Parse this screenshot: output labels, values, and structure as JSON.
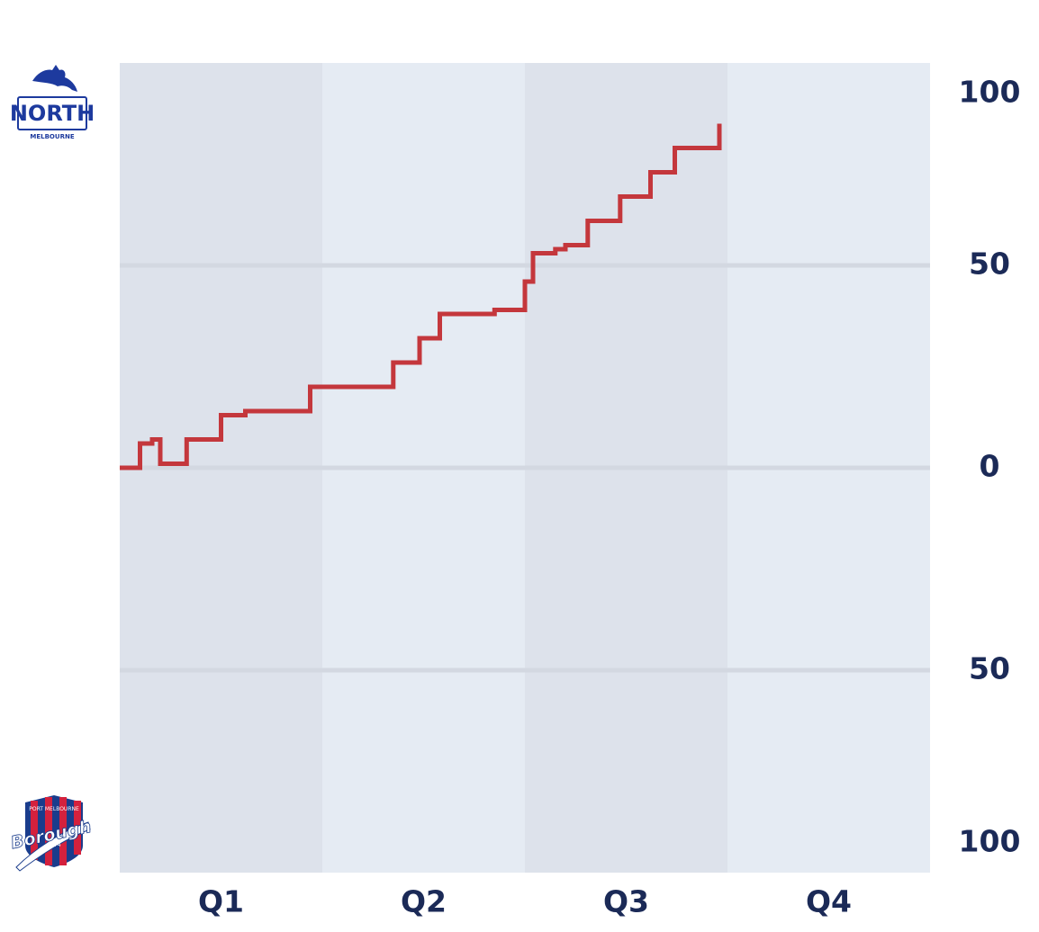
{
  "teams": {
    "top": {
      "name": "NORTH",
      "sub": "MELBOURNE",
      "color": "#1d3a9e"
    },
    "bottom": {
      "name": "Borough",
      "top_text": "PORT MELBOURNE",
      "year": "1874",
      "red": "#d4213d",
      "blue": "#1a3c8c"
    }
  },
  "colors": {
    "quarter_dark": "#dde2eb",
    "quarter_light": "#e5ebf3",
    "gridline": "#d3d8e1",
    "line": "#c4373c",
    "label": "#1b2a57"
  },
  "chart_data": {
    "type": "line",
    "step": true,
    "categories": [
      "Q1",
      "Q2",
      "Q3",
      "Q4"
    ],
    "xlim": [
      0,
      4
    ],
    "ylim": [
      -100,
      100
    ],
    "y_ticks": [
      100,
      50,
      0,
      -50,
      -100
    ],
    "y_tick_labels": [
      "100",
      "50",
      "0",
      "50",
      "100"
    ],
    "grid": true,
    "series": [
      {
        "color": "#c4373c",
        "points": [
          [
            0,
            0
          ],
          [
            0.1,
            0
          ],
          [
            0.1,
            6
          ],
          [
            0.16,
            6
          ],
          [
            0.16,
            7
          ],
          [
            0.2,
            7
          ],
          [
            0.2,
            1
          ],
          [
            0.33,
            1
          ],
          [
            0.33,
            7
          ],
          [
            0.5,
            7
          ],
          [
            0.5,
            13
          ],
          [
            0.62,
            13
          ],
          [
            0.62,
            14
          ],
          [
            0.94,
            14
          ],
          [
            0.94,
            20
          ],
          [
            1.35,
            20
          ],
          [
            1.35,
            26
          ],
          [
            1.48,
            26
          ],
          [
            1.48,
            32
          ],
          [
            1.58,
            32
          ],
          [
            1.58,
            38
          ],
          [
            1.85,
            38
          ],
          [
            1.85,
            39
          ],
          [
            2.0,
            39
          ],
          [
            2.0,
            46
          ],
          [
            2.04,
            46
          ],
          [
            2.04,
            53
          ],
          [
            2.15,
            53
          ],
          [
            2.15,
            54
          ],
          [
            2.2,
            54
          ],
          [
            2.2,
            55
          ],
          [
            2.31,
            55
          ],
          [
            2.31,
            61
          ],
          [
            2.47,
            61
          ],
          [
            2.47,
            67
          ],
          [
            2.62,
            67
          ],
          [
            2.62,
            73
          ],
          [
            2.74,
            73
          ],
          [
            2.74,
            79
          ],
          [
            2.96,
            79
          ],
          [
            2.96,
            85
          ]
        ]
      }
    ]
  }
}
